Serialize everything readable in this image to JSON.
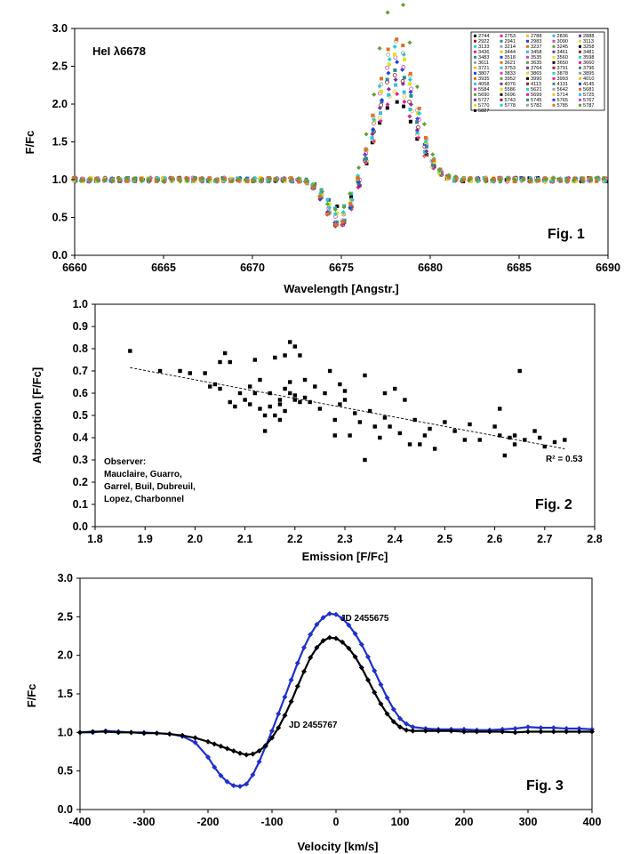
{
  "chart_data": [
    {
      "type": "scatter",
      "title": "",
      "annotation": "HeI λ6678",
      "figure_label": "Fig. 1",
      "xlabel": "Wavelength [Angstr.]",
      "ylabel": "F/Fc",
      "xlim": [
        6660,
        6690
      ],
      "ylim": [
        0,
        3
      ],
      "xticks": [
        "6660",
        "6665",
        "6670",
        "6675",
        "6680",
        "6685",
        "6690"
      ],
      "yticks": [
        "0.0",
        "0.5",
        "1.0",
        "1.5",
        "2.0",
        "2.5",
        "3.0"
      ],
      "grid": false,
      "legend_position": "top-right",
      "legend_entries": [
        "2744",
        "2753",
        "2788",
        "2836",
        "2888",
        "2922",
        "2941",
        "2983",
        "3090",
        "3113",
        "3133",
        "3214",
        "3237",
        "3245",
        "3258",
        "3436",
        "3444",
        "3458",
        "3461",
        "3481",
        "3483",
        "3518",
        "3535",
        "3560",
        "3598",
        "3611",
        "3621",
        "3635",
        "3650",
        "3660",
        "3721",
        "3753",
        "3764",
        "3791",
        "3796",
        "3807",
        "3833",
        "3865",
        "3878",
        "3895",
        "3935",
        "3952",
        "3990",
        "3993",
        "4010",
        "4058",
        "4076",
        "4113",
        "4131",
        "4145",
        "5584",
        "5586",
        "5621",
        "5642",
        "5681",
        "5690",
        "5696",
        "5699",
        "5714",
        "5725",
        "5727",
        "5743",
        "5745",
        "5765",
        "5767",
        "5770",
        "5778",
        "5782",
        "5785",
        "5787",
        "5827"
      ],
      "profile_min": {
        "x": 6675,
        "y": 0.45
      },
      "profile_max": {
        "x": 6678,
        "y": 2.35
      },
      "envelope_y_range": [
        0.3,
        2.95
      ]
    },
    {
      "type": "scatter",
      "title": "",
      "figure_label": "Fig. 2",
      "xlabel": "Emission [F/Fc]",
      "ylabel": "Absorption [F/Fc]",
      "xlim": [
        1.8,
        2.8
      ],
      "ylim": [
        0.0,
        1.0
      ],
      "xticks": [
        "1.8",
        "1.9",
        "2.0",
        "2.1",
        "2.2",
        "2.3",
        "2.4",
        "2.5",
        "2.6",
        "2.7",
        "2.8"
      ],
      "yticks": [
        "0.0",
        "0.1",
        "0.2",
        "0.3",
        "0.4",
        "0.5",
        "0.6",
        "0.7",
        "0.8",
        "0.9",
        "1.0"
      ],
      "grid": false,
      "r_squared_label": "R² = 0.53",
      "observer_note": [
        "Observer:",
        "Mauclaire, Guarro,",
        "Garrel, Buil, Dubreuil,",
        "Lopez, Charbonnel"
      ],
      "trendline": {
        "x": [
          1.87,
          2.74
        ],
        "y": [
          0.715,
          0.35
        ]
      },
      "points": {
        "x": [
          1.87,
          1.93,
          1.97,
          1.99,
          2.02,
          2.03,
          2.04,
          2.05,
          2.05,
          2.06,
          2.07,
          2.07,
          2.08,
          2.09,
          2.1,
          2.11,
          2.11,
          2.12,
          2.12,
          2.13,
          2.13,
          2.14,
          2.14,
          2.15,
          2.15,
          2.16,
          2.16,
          2.17,
          2.17,
          2.17,
          2.18,
          2.18,
          2.18,
          2.19,
          2.19,
          2.19,
          2.2,
          2.2,
          2.2,
          2.21,
          2.21,
          2.22,
          2.22,
          2.23,
          2.24,
          2.25,
          2.26,
          2.27,
          2.28,
          2.28,
          2.29,
          2.29,
          2.3,
          2.3,
          2.31,
          2.32,
          2.33,
          2.34,
          2.34,
          2.35,
          2.36,
          2.37,
          2.38,
          2.38,
          2.39,
          2.4,
          2.41,
          2.42,
          2.43,
          2.44,
          2.45,
          2.46,
          2.47,
          2.48,
          2.5,
          2.52,
          2.54,
          2.55,
          2.57,
          2.6,
          2.61,
          2.61,
          2.62,
          2.63,
          2.64,
          2.64,
          2.65,
          2.66,
          2.68,
          2.69,
          2.7,
          2.72,
          2.74
        ],
        "y": [
          0.79,
          0.7,
          0.7,
          0.69,
          0.69,
          0.63,
          0.64,
          0.62,
          0.74,
          0.78,
          0.74,
          0.56,
          0.54,
          0.6,
          0.57,
          0.55,
          0.63,
          0.6,
          0.75,
          0.66,
          0.53,
          0.43,
          0.5,
          0.6,
          0.54,
          0.5,
          0.76,
          0.55,
          0.57,
          0.48,
          0.77,
          0.62,
          0.52,
          0.83,
          0.65,
          0.6,
          0.81,
          0.59,
          0.57,
          0.56,
          0.77,
          0.58,
          0.66,
          0.56,
          0.63,
          0.53,
          0.6,
          0.7,
          0.48,
          0.41,
          0.55,
          0.64,
          0.61,
          0.57,
          0.41,
          0.51,
          0.47,
          0.3,
          0.68,
          0.52,
          0.45,
          0.4,
          0.49,
          0.6,
          0.45,
          0.62,
          0.42,
          0.57,
          0.37,
          0.48,
          0.37,
          0.41,
          0.44,
          0.35,
          0.47,
          0.43,
          0.39,
          0.46,
          0.39,
          0.45,
          0.41,
          0.53,
          0.32,
          0.4,
          0.37,
          0.41,
          0.7,
          0.39,
          0.43,
          0.4,
          0.36,
          0.38,
          0.39
        ]
      }
    },
    {
      "type": "line",
      "title": "",
      "figure_label": "Fig. 3",
      "xlabel": "Velocity [km/s]",
      "ylabel": "F/Fc",
      "xlim": [
        -400,
        400
      ],
      "ylim": [
        0.0,
        3.0
      ],
      "xticks": [
        "-400",
        "-300",
        "-200",
        "-100",
        "0",
        "100",
        "200",
        "300",
        "400"
      ],
      "yticks": [
        "0.0",
        "0.5",
        "1.0",
        "1.5",
        "2.0",
        "2.5",
        "3.0"
      ],
      "grid": false,
      "series": [
        {
          "name": "JD 2455675",
          "color": "#1f2fd0",
          "x": [
            -400,
            -380,
            -360,
            -340,
            -320,
            -300,
            -280,
            -260,
            -240,
            -220,
            -200,
            -190,
            -180,
            -170,
            -160,
            -150,
            -140,
            -130,
            -120,
            -110,
            -100,
            -90,
            -80,
            -70,
            -60,
            -50,
            -40,
            -30,
            -20,
            -10,
            0,
            10,
            20,
            30,
            40,
            50,
            60,
            70,
            80,
            90,
            100,
            110,
            120,
            140,
            160,
            180,
            200,
            220,
            240,
            260,
            280,
            300,
            320,
            340,
            360,
            380,
            400
          ],
          "y": [
            1.0,
            1.0,
            1.02,
            1.01,
            1.0,
            1.0,
            0.99,
            0.98,
            0.95,
            0.87,
            0.68,
            0.55,
            0.44,
            0.36,
            0.31,
            0.3,
            0.33,
            0.45,
            0.62,
            0.82,
            1.02,
            1.24,
            1.46,
            1.68,
            1.9,
            2.1,
            2.27,
            2.4,
            2.49,
            2.54,
            2.53,
            2.48,
            2.39,
            2.28,
            2.14,
            1.98,
            1.8,
            1.62,
            1.45,
            1.3,
            1.18,
            1.11,
            1.07,
            1.05,
            1.04,
            1.04,
            1.04,
            1.03,
            1.03,
            1.04,
            1.05,
            1.07,
            1.06,
            1.06,
            1.05,
            1.05,
            1.04
          ]
        },
        {
          "name": "JD 2455767",
          "color": "#000000",
          "x": [
            -400,
            -380,
            -360,
            -340,
            -320,
            -300,
            -280,
            -260,
            -240,
            -220,
            -200,
            -190,
            -180,
            -170,
            -160,
            -150,
            -140,
            -130,
            -120,
            -110,
            -100,
            -90,
            -80,
            -70,
            -60,
            -50,
            -40,
            -30,
            -20,
            -10,
            0,
            10,
            20,
            30,
            40,
            50,
            60,
            70,
            80,
            90,
            100,
            110,
            120,
            140,
            160,
            180,
            200,
            220,
            240,
            260,
            280,
            300,
            320,
            340,
            360,
            380,
            400
          ],
          "y": [
            1.0,
            1.01,
            1.01,
            1.0,
            1.0,
            0.99,
            0.99,
            0.98,
            0.96,
            0.93,
            0.88,
            0.85,
            0.82,
            0.79,
            0.76,
            0.73,
            0.71,
            0.72,
            0.76,
            0.83,
            0.93,
            1.06,
            1.22,
            1.4,
            1.6,
            1.79,
            1.97,
            2.1,
            2.19,
            2.23,
            2.22,
            2.17,
            2.09,
            1.98,
            1.84,
            1.68,
            1.52,
            1.37,
            1.24,
            1.14,
            1.07,
            1.03,
            1.02,
            1.02,
            1.02,
            1.02,
            1.01,
            1.01,
            1.01,
            1.01,
            1.0,
            1.01,
            1.01,
            1.01,
            1.01,
            1.01,
            1.01
          ]
        }
      ]
    }
  ]
}
